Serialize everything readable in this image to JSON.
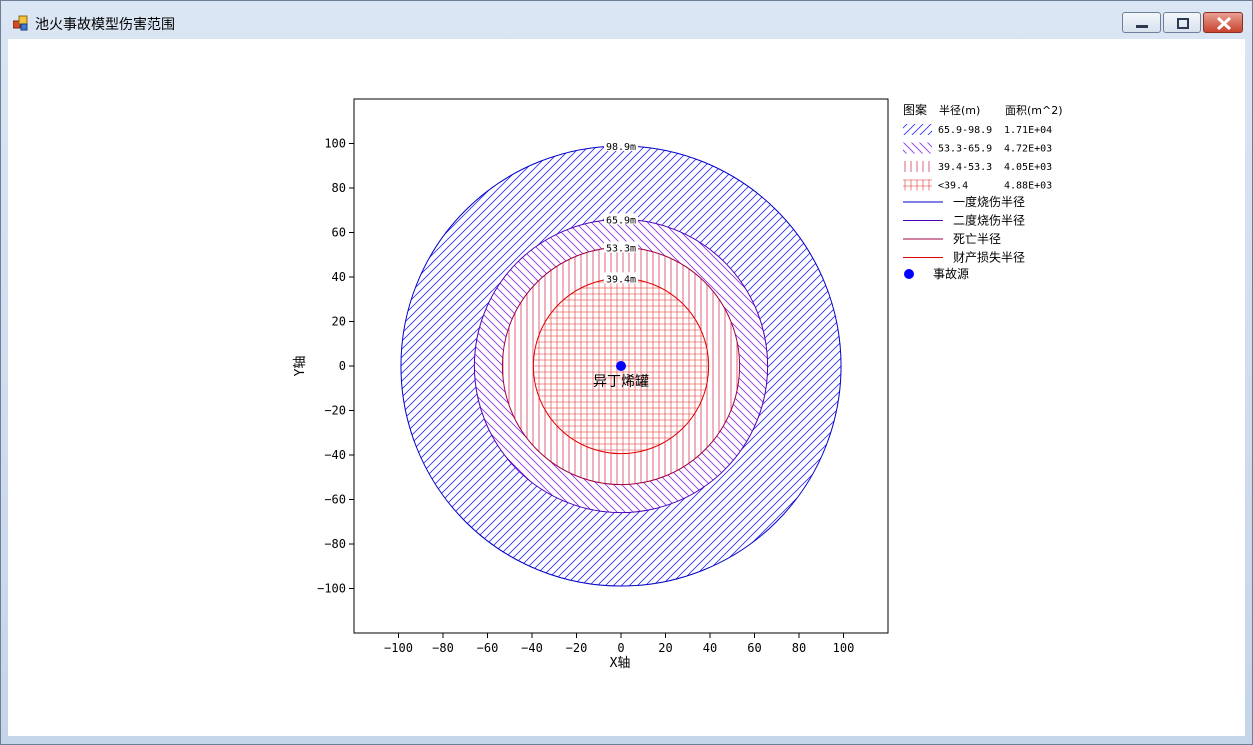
{
  "window": {
    "title": "池火事故模型伤害范围",
    "icons": {
      "app": "app-icon",
      "minimize": "minimize-icon",
      "maximize": "maximize-icon",
      "close": "close-icon"
    }
  },
  "chart_data": {
    "type": "scatter",
    "xlabel": "X轴",
    "ylabel": "Y轴",
    "xlim": [
      -120,
      120
    ],
    "ylim": [
      -120,
      120
    ],
    "xticks": [
      -100,
      -80,
      -60,
      -40,
      -20,
      0,
      20,
      40,
      60,
      80,
      100
    ],
    "yticks": [
      100,
      80,
      60,
      40,
      20,
      0,
      -20,
      -40,
      -60,
      -80,
      -100
    ],
    "grid": false,
    "legend_position": "right",
    "zones": [
      {
        "radius": 98.9,
        "circle_label": "98.9m",
        "range": "65.9-98.9",
        "area": "1.71E+04",
        "pattern": "fwd-diag",
        "color": "#2a2aff"
      },
      {
        "radius": 65.9,
        "circle_label": "65.9m",
        "range": "53.3-65.9",
        "area": "4.72E+03",
        "pattern": "back-diag",
        "color": "#8a2be2"
      },
      {
        "radius": 53.3,
        "circle_label": "53.3m",
        "range": "39.4-53.3",
        "area": "4.05E+03",
        "pattern": "vertical",
        "color": "#cc2244"
      },
      {
        "radius": 39.4,
        "circle_label": "39.4m",
        "range": "<39.4",
        "area": "4.88E+03",
        "pattern": "grid",
        "color": "#e03030"
      }
    ],
    "boundary_lines": [
      {
        "name": "一度烧伤半径",
        "color": "#0000c8"
      },
      {
        "name": "二度烧伤半径",
        "color": "#4b00b4"
      },
      {
        "name": "死亡半径",
        "color": "#a00040"
      },
      {
        "name": "财产损失半径",
        "color": "#e00000"
      }
    ],
    "source": {
      "name": "事故源",
      "x": 0,
      "y": 0,
      "label": "异丁烯罐",
      "color": "#0000ff"
    },
    "legend_header": {
      "pattern": "图案",
      "radius": "半径(m)",
      "area": "面积(m^2)"
    }
  }
}
